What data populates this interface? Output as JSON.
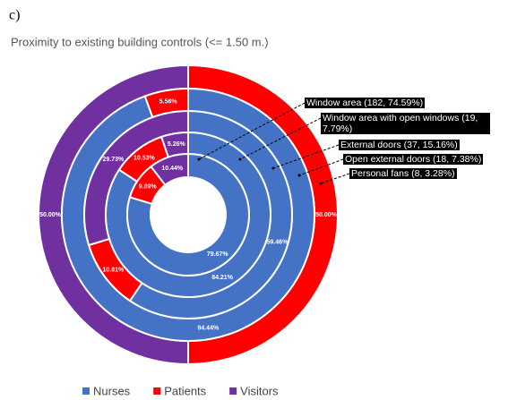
{
  "chart_data": {
    "type": "donut",
    "panel_label": "c)",
    "title": "Proximity to existing building controls (<= 1.50 m.)",
    "series": [
      {
        "name": "Nurses",
        "color": "#4472c4"
      },
      {
        "name": "Patients",
        "color": "#ff0000"
      },
      {
        "name": "Visitors",
        "color": "#7030a0"
      }
    ],
    "rings": [
      {
        "name": "Personal fans (8, 3.28%)",
        "values": [
          0,
          50,
          50
        ],
        "value_labels": [
          null,
          "50.00%",
          "50.00%"
        ]
      },
      {
        "name": "Open external doors (18, 7.38%)",
        "values": [
          94.44,
          5.56,
          0
        ],
        "value_labels": [
          "94.44%",
          "5.56%",
          null
        ]
      },
      {
        "name": "External doors (37, 15.16%)",
        "values": [
          59.46,
          10.81,
          29.73
        ],
        "value_labels": [
          "59.46%",
          "10.81%",
          "29.73%"
        ]
      },
      {
        "name": "Window area with open windows (19, 7.79%)",
        "values": [
          84.21,
          10.53,
          5.26
        ],
        "value_labels": [
          "84.21%",
          "10.53%",
          "5.26%"
        ]
      },
      {
        "name": "Window area (182, 74.59%)",
        "values": [
          79.67,
          9.89,
          10.44
        ],
        "value_labels": [
          "79.67%",
          "9.89%",
          "10.44%"
        ]
      }
    ]
  }
}
